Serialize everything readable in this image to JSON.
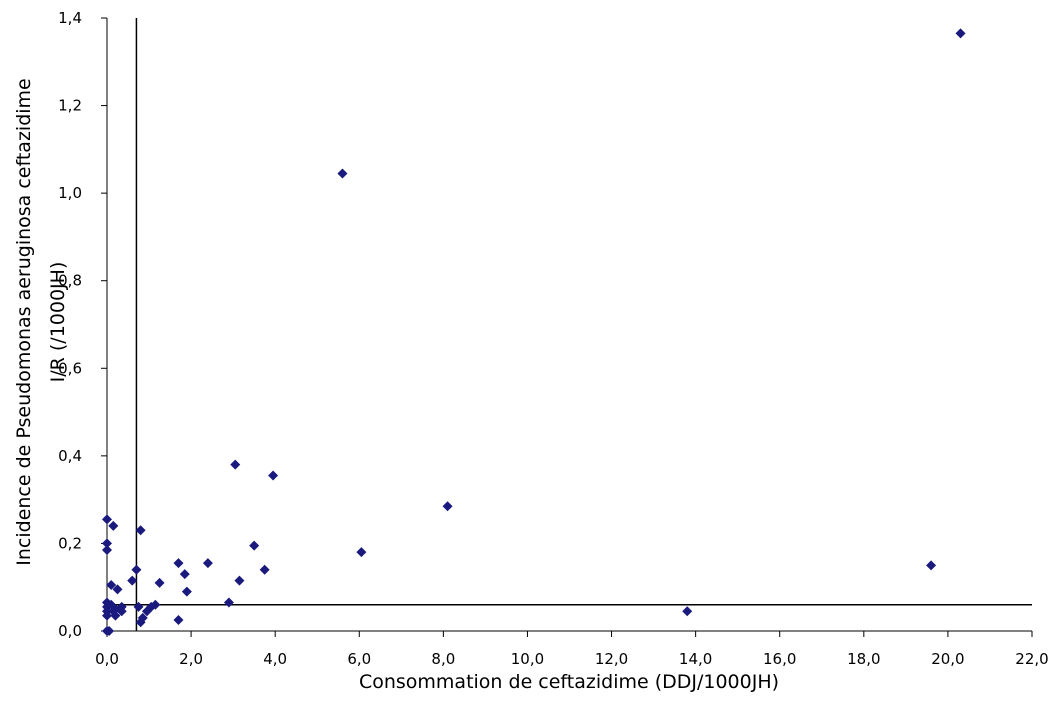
{
  "chart_data": {
    "type": "scatter",
    "xlabel": "Consommation de ceftazidime (DDJ/1000JH)",
    "ylabel_line1": "Incidence de Pseudomonas aeruginosa ceftazidime",
    "ylabel_line2": "I/R (/1000JH)",
    "xlim": [
      0,
      22
    ],
    "ylim": [
      0,
      1.4
    ],
    "x_ticks": [
      0,
      2,
      4,
      6,
      8,
      10,
      12,
      14,
      16,
      18,
      20,
      22
    ],
    "x_tick_labels": [
      "0,0",
      "2,0",
      "4,0",
      "6,0",
      "8,0",
      "10,0",
      "12,0",
      "14,0",
      "16,0",
      "18,0",
      "20,0",
      "22,0"
    ],
    "y_ticks": [
      0,
      0.2,
      0.4,
      0.6,
      0.8,
      1.0,
      1.2,
      1.4
    ],
    "y_tick_labels": [
      "0,0",
      "0,2",
      "0,4",
      "0,6",
      "0,8",
      "1,0",
      "1,2",
      "1,4"
    ],
    "reference_lines": {
      "x": 0.7,
      "y": 0.06
    },
    "marker": "diamond",
    "marker_color": "#1a1a7e",
    "points": [
      {
        "x": 0.0,
        "y": 0.255
      },
      {
        "x": 0.0,
        "y": 0.2
      },
      {
        "x": 0.0,
        "y": 0.185
      },
      {
        "x": 0.0,
        "y": 0.065
      },
      {
        "x": 0.0,
        "y": 0.055
      },
      {
        "x": 0.0,
        "y": 0.045
      },
      {
        "x": 0.0,
        "y": 0.035
      },
      {
        "x": 0.0,
        "y": 0.0
      },
      {
        "x": 0.05,
        "y": 0.0
      },
      {
        "x": 0.1,
        "y": 0.105
      },
      {
        "x": 0.15,
        "y": 0.24
      },
      {
        "x": 0.1,
        "y": 0.06
      },
      {
        "x": 0.15,
        "y": 0.045
      },
      {
        "x": 0.2,
        "y": 0.05
      },
      {
        "x": 0.25,
        "y": 0.095
      },
      {
        "x": 0.2,
        "y": 0.035
      },
      {
        "x": 0.35,
        "y": 0.055
      },
      {
        "x": 0.35,
        "y": 0.045
      },
      {
        "x": 0.6,
        "y": 0.115
      },
      {
        "x": 0.7,
        "y": 0.14
      },
      {
        "x": 0.75,
        "y": 0.055
      },
      {
        "x": 0.8,
        "y": 0.23
      },
      {
        "x": 0.8,
        "y": 0.02
      },
      {
        "x": 0.85,
        "y": 0.03
      },
      {
        "x": 0.95,
        "y": 0.045
      },
      {
        "x": 1.05,
        "y": 0.055
      },
      {
        "x": 1.15,
        "y": 0.06
      },
      {
        "x": 1.25,
        "y": 0.11
      },
      {
        "x": 1.7,
        "y": 0.155
      },
      {
        "x": 1.7,
        "y": 0.025
      },
      {
        "x": 1.85,
        "y": 0.13
      },
      {
        "x": 1.9,
        "y": 0.09
      },
      {
        "x": 2.4,
        "y": 0.155
      },
      {
        "x": 2.9,
        "y": 0.065
      },
      {
        "x": 3.05,
        "y": 0.38
      },
      {
        "x": 3.15,
        "y": 0.115
      },
      {
        "x": 3.5,
        "y": 0.195
      },
      {
        "x": 3.75,
        "y": 0.14
      },
      {
        "x": 3.95,
        "y": 0.355
      },
      {
        "x": 5.6,
        "y": 1.045
      },
      {
        "x": 6.05,
        "y": 0.18
      },
      {
        "x": 8.1,
        "y": 0.285
      },
      {
        "x": 13.8,
        "y": 0.045
      },
      {
        "x": 19.6,
        "y": 0.15
      },
      {
        "x": 20.3,
        "y": 1.365
      }
    ]
  }
}
